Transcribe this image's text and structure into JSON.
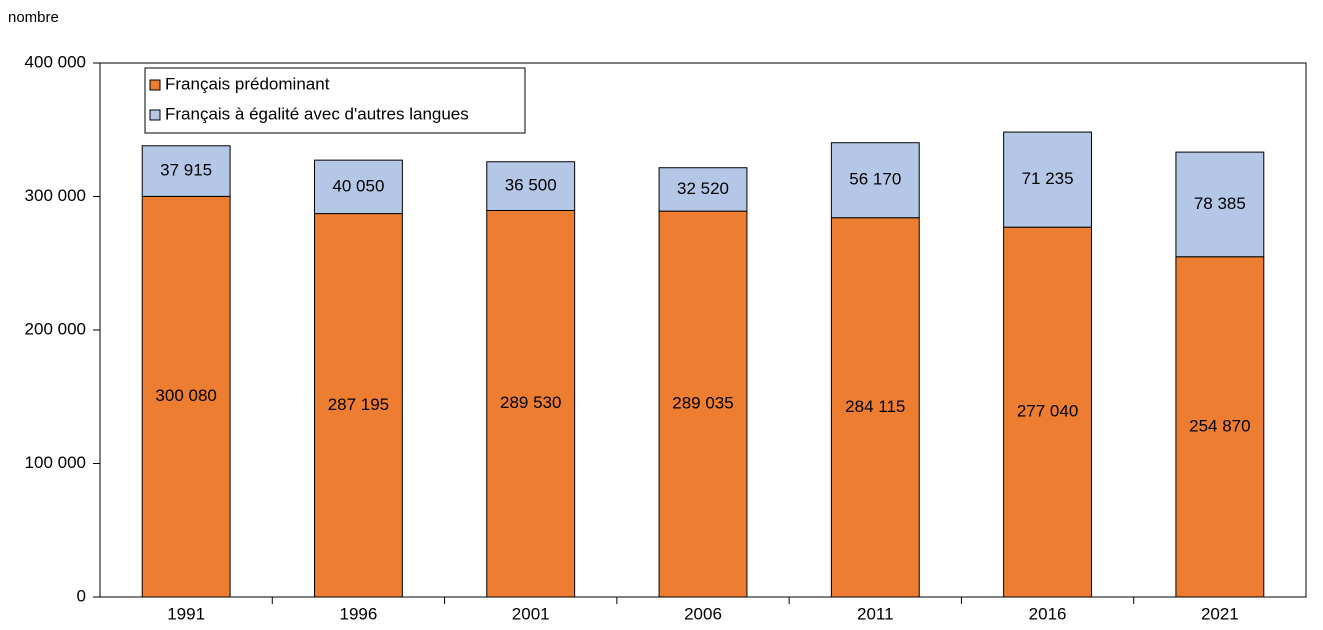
{
  "chart_data": {
    "type": "stacked_bar",
    "y_label": "nombre",
    "categories": [
      "1991",
      "1996",
      "2001",
      "2006",
      "2011",
      "2016",
      "2021"
    ],
    "series": [
      {
        "name": "Français prédominant",
        "color": "#ed7d31",
        "values": [
          300080,
          287195,
          289530,
          289035,
          284115,
          277040,
          254870
        ],
        "value_labels": [
          "300 080",
          "287 195",
          "289 530",
          "289 035",
          "284 115",
          "277 040",
          "254 870"
        ]
      },
      {
        "name": "Français à égalité avec d'autres langues",
        "color": "#b4c7e7",
        "values": [
          37915,
          40050,
          36500,
          32520,
          56170,
          71235,
          78385
        ],
        "value_labels": [
          "37 915",
          "40 050",
          "36 500",
          "32 520",
          "56 170",
          "71 235",
          "78 385"
        ]
      }
    ],
    "ylim": [
      0,
      400000
    ],
    "yticks": [
      0,
      {
        "value": 100000,
        "label": "100 000"
      },
      {
        "value": 200000,
        "label": "200 000"
      },
      {
        "value": 300000,
        "label": "300 000"
      },
      {
        "value": 400000,
        "label": "400 000"
      }
    ],
    "grid": false,
    "legend": "upper left"
  }
}
